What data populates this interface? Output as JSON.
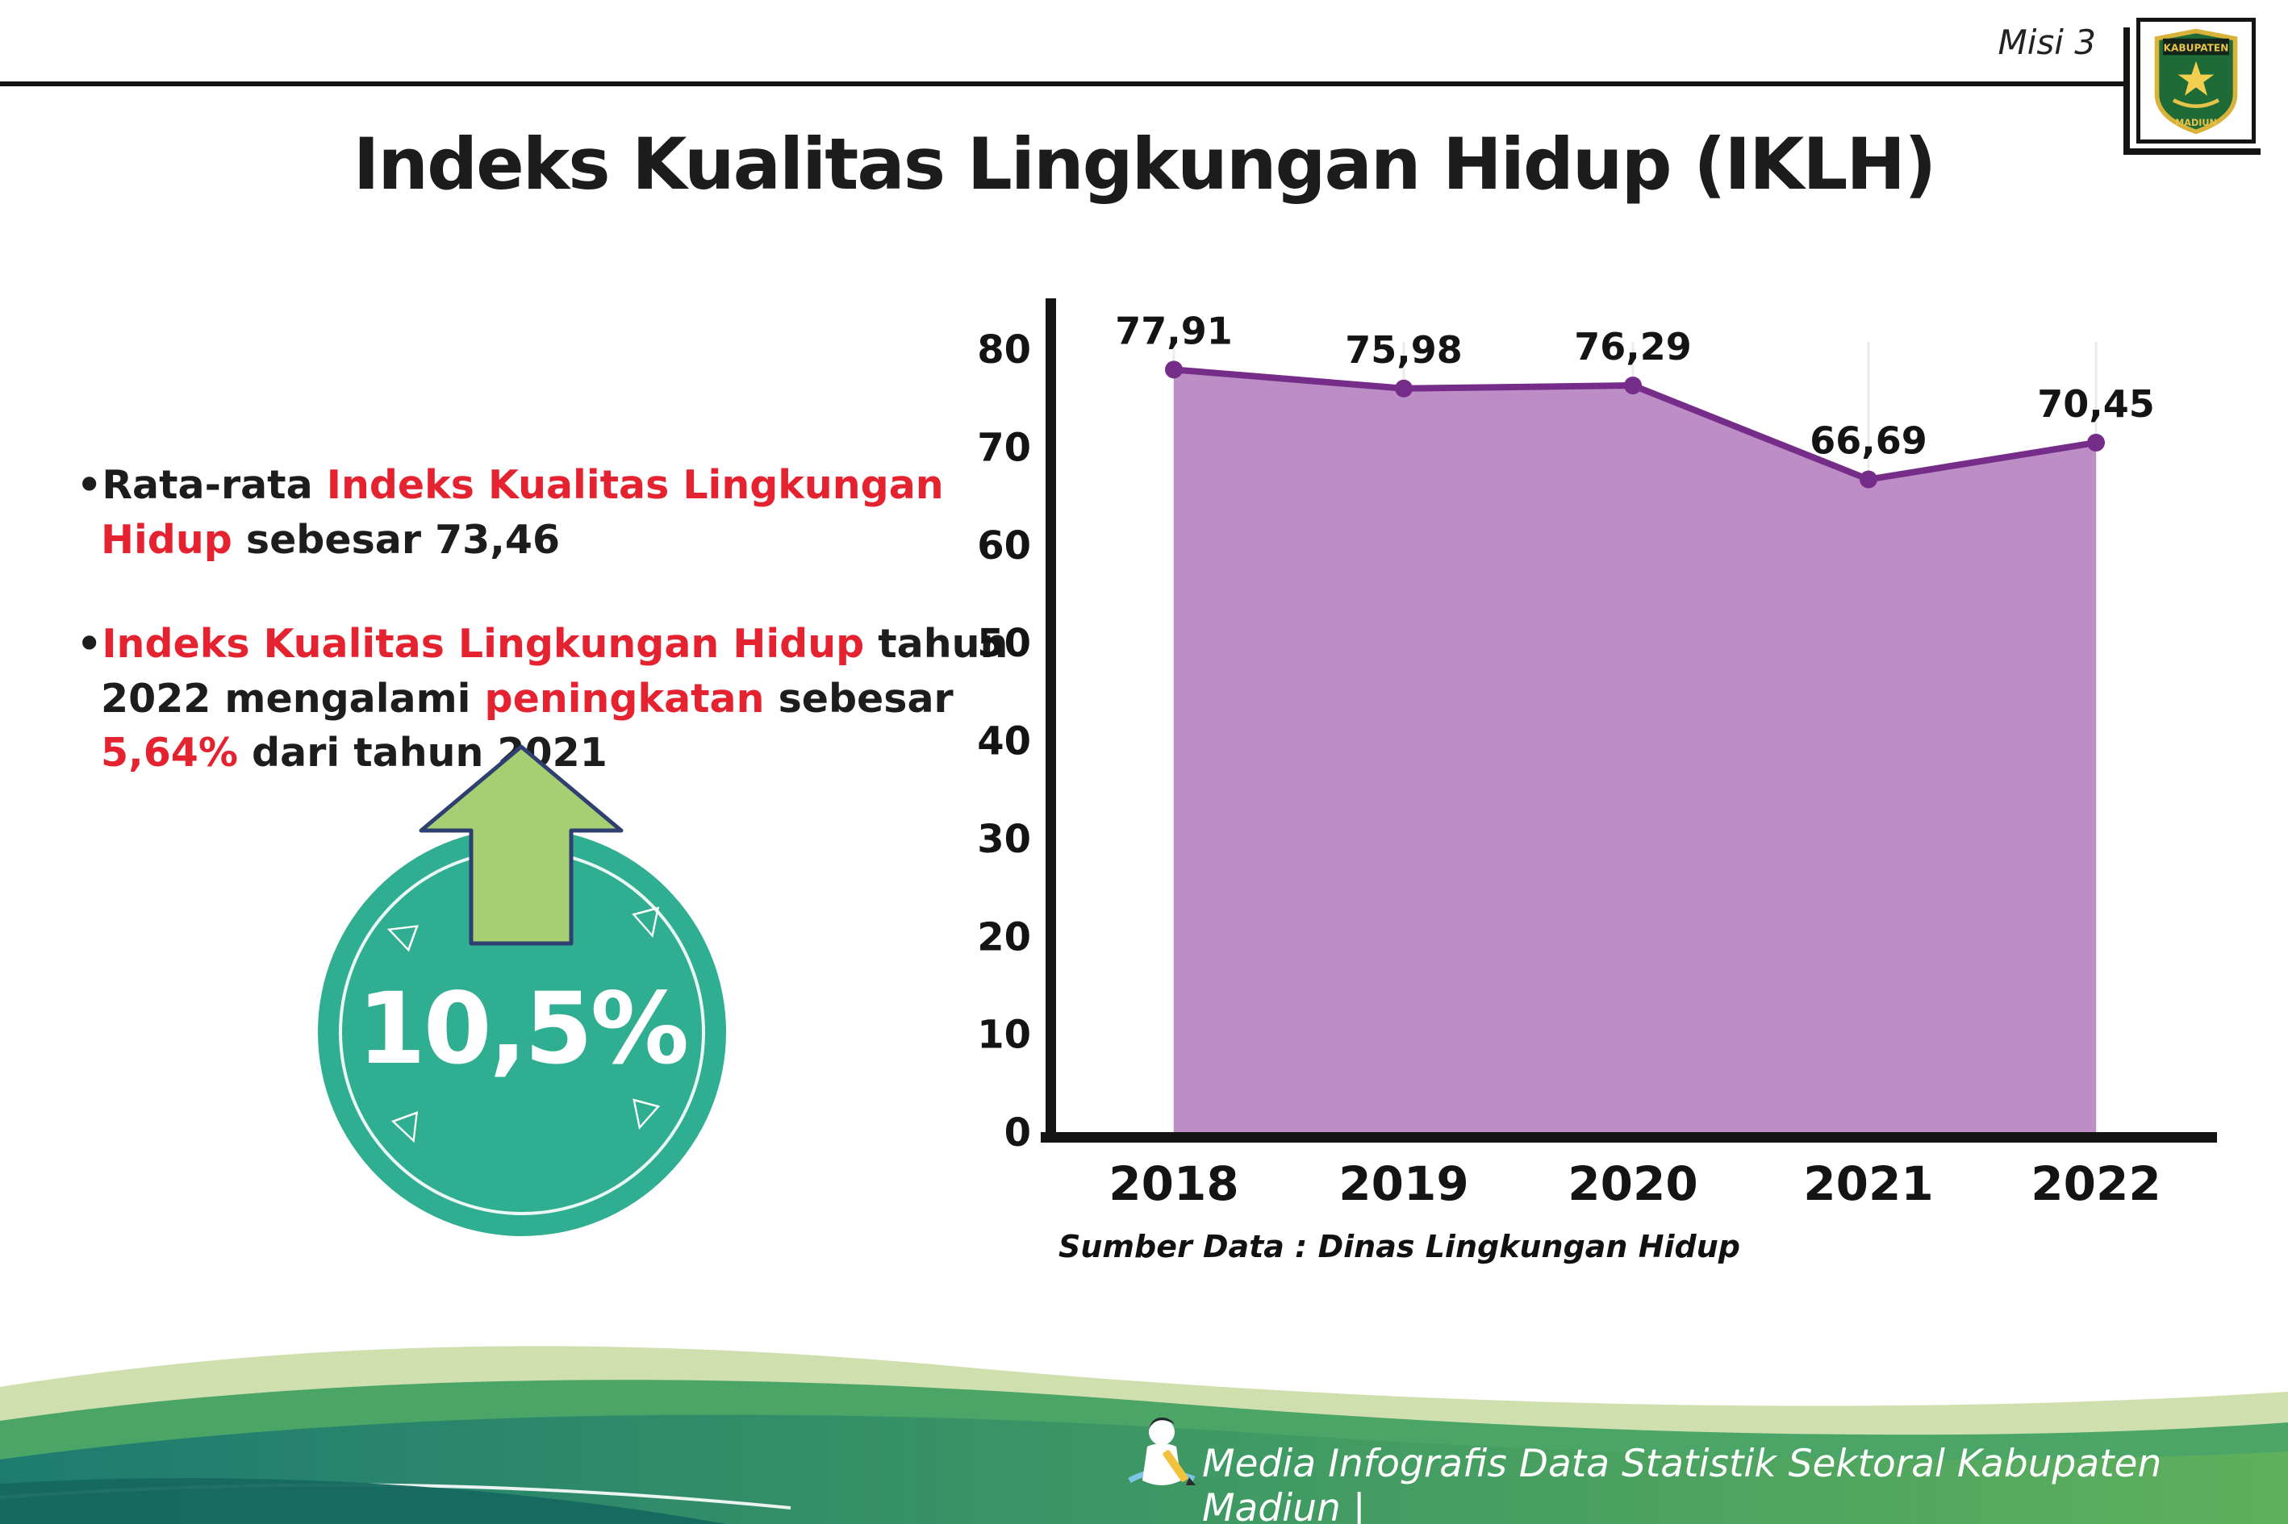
{
  "header": {
    "misi_label": "Misi 3",
    "title": "Indeks Kualitas Lingkungan Hidup (IKLH)",
    "logo": {
      "icon": "kabupaten-madiun-crest",
      "text_top": "KABUPATEN",
      "text_bottom": "MADIUN"
    }
  },
  "bullets": {
    "b1": {
      "s1": "•Rata-rata ",
      "s2": "Indeks Kualitas Lingkungan Hidup",
      "s3": " sebesar 73,46"
    },
    "b2": {
      "s1": "•",
      "s2": "Indeks Kualitas Lingkungan Hidup",
      "s3": " tahun 2022 mengalami ",
      "s4": "peningkatan",
      "s5": " sebesar ",
      "s6": "5,64%",
      "s7": " dari tahun 2021"
    }
  },
  "badge": {
    "value": "10,5%",
    "direction": "up",
    "ornaments": {
      "o1": "◁",
      "o2": "▽",
      "o3": "◁",
      "o4": "▽"
    }
  },
  "chart_data": {
    "type": "area",
    "title": "",
    "categories": [
      "2018",
      "2019",
      "2020",
      "2021",
      "2022"
    ],
    "values": [
      77.91,
      75.98,
      76.29,
      66.69,
      70.45
    ],
    "value_labels": [
      "77,91",
      "75,98",
      "76,29",
      "66,69",
      "70,45"
    ],
    "xlabel": "",
    "ylabel": "",
    "ylim": [
      0,
      80
    ],
    "yticks": [
      0,
      10,
      20,
      30,
      40,
      50,
      60,
      70,
      80
    ],
    "grid": "faint-vertical",
    "legend": "none",
    "fill_color": "#bd8dc5",
    "line_color": "#762d8a",
    "source": "Sumber Data : Dinas Lingkungan Hidup"
  },
  "footer": {
    "text": "Media Infografis Data Statistik Sektoral Kabupaten Madiun |"
  },
  "colors": {
    "badge_circle": "#2fae92",
    "badge_arrow": "#a6ce73",
    "accent_red": "#e52330",
    "footer_teal": "#1e7b70",
    "footer_green": "#5fb05c"
  }
}
